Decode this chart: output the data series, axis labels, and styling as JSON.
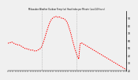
{
  "title": "Milwaukee Weather Outdoor Temp (vs) Heat Index per Minute (Last 24 Hours)",
  "line_color": "#ff0000",
  "bg_color": "#f0f0f0",
  "plot_bg": "#f0f0f0",
  "grid_color": "#888888",
  "vline_color": "#999999",
  "ylim": [
    20,
    100
  ],
  "ytick_values": [
    20,
    30,
    40,
    50,
    60,
    70,
    80,
    90
  ],
  "vline_positions": [
    0.29,
    0.58
  ],
  "n_xticks": 48,
  "y_values": [
    56,
    57,
    57,
    58,
    57,
    56,
    55,
    55,
    54,
    54,
    53,
    52,
    51,
    50,
    49,
    49,
    48,
    48,
    47,
    47,
    47,
    46,
    46,
    46,
    47,
    48,
    49,
    51,
    55,
    60,
    65,
    71,
    76,
    81,
    85,
    88,
    90,
    91,
    92,
    92,
    91,
    92,
    91,
    90,
    90,
    89,
    88,
    86,
    83,
    78,
    73,
    67,
    60,
    54,
    48,
    43,
    38,
    35,
    55,
    57,
    56,
    55,
    54,
    53,
    52,
    51,
    50,
    49,
    48,
    47,
    46,
    45,
    44,
    43,
    42,
    41,
    40,
    39,
    38,
    37,
    36,
    35,
    34,
    33,
    32,
    31,
    30,
    29,
    28,
    27,
    26,
    25,
    24,
    23,
    22,
    21
  ]
}
